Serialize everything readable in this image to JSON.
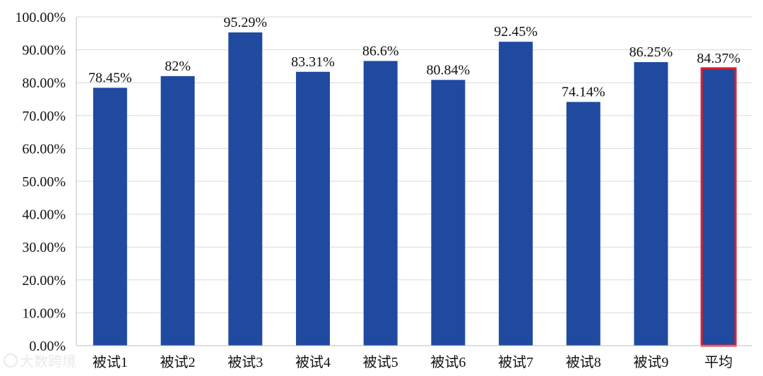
{
  "watermark": "大数跨境",
  "chart_data": {
    "type": "bar",
    "categories": [
      "被试1",
      "被试2",
      "被试3",
      "被试4",
      "被试5",
      "被试6",
      "被试7",
      "被试8",
      "被试9",
      "平均"
    ],
    "values": [
      78.45,
      82,
      95.29,
      83.31,
      86.6,
      80.84,
      92.45,
      74.14,
      86.25,
      84.37
    ],
    "data_labels": [
      "78.45%",
      "82%",
      "95.29%",
      "83.31%",
      "86.6%",
      "80.84%",
      "92.45%",
      "74.14%",
      "86.25%",
      "84.37%"
    ],
    "y_ticks": [
      "0.00%",
      "10.00%",
      "20.00%",
      "30.00%",
      "40.00%",
      "50.00%",
      "60.00%",
      "70.00%",
      "80.00%",
      "90.00%",
      "100.00%"
    ],
    "ylim": [
      0,
      100
    ],
    "grid": true,
    "bar_color": "#1f4aa0",
    "highlight": {
      "category": "平均",
      "border_color": "#e0202a"
    },
    "title": "",
    "xlabel": "",
    "ylabel": ""
  }
}
